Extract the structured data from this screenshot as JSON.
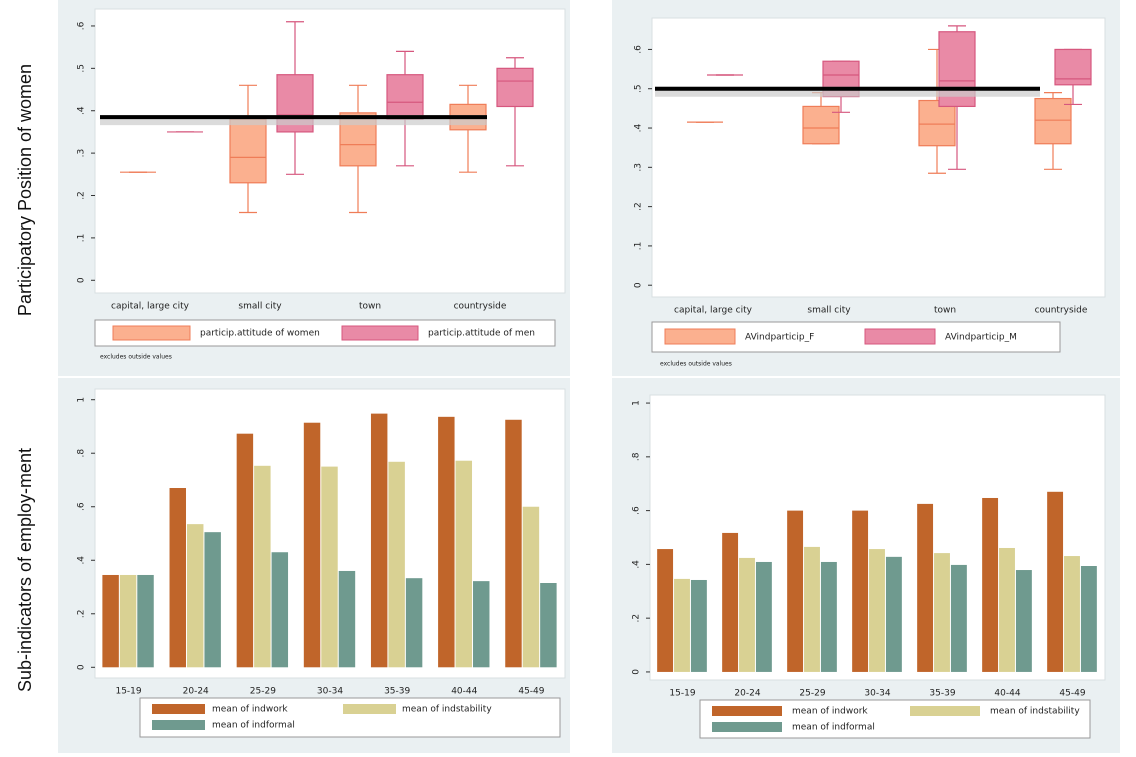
{
  "side_labels": [
    "Sub-indicators of employ-ment",
    "Participatory Position of women"
  ],
  "chart_data": [
    {
      "type": "box",
      "categories": [
        "capital, large city",
        "small city",
        "town",
        "countryside"
      ],
      "ylim": [
        -0.03,
        0.64
      ],
      "yticks": [
        0,
        {
          "value": 0.1,
          "label": ".1"
        },
        {
          "value": 0.2,
          "label": ".2"
        },
        {
          "value": 0.3,
          "label": ".3"
        },
        {
          "value": 0.4,
          "label": ".4"
        },
        {
          "value": 0.5,
          "label": ".5"
        },
        {
          "value": 0.6,
          "label": ".6"
        }
      ],
      "reference_line": 0.385,
      "note": "excludes outside values",
      "series": [
        {
          "name": "particip.attitude of women",
          "color": "#fbb08f",
          "edge": "#ef7d58",
          "lower": [
            0.255,
            0.16,
            0.16,
            0.255
          ],
          "q1": [
            0.255,
            0.23,
            0.27,
            0.355
          ],
          "median": [
            0.255,
            0.29,
            0.32,
            0.385
          ],
          "q3": [
            0.255,
            0.38,
            0.395,
            0.415
          ],
          "upper": [
            0.255,
            0.46,
            0.46,
            0.46
          ]
        },
        {
          "name": "particip.attitude of men",
          "color": "#e98aa6",
          "edge": "#d6577e",
          "lower": [
            0.35,
            0.25,
            0.27,
            0.27
          ],
          "q1": [
            0.35,
            0.35,
            0.38,
            0.41
          ],
          "median": [
            0.35,
            0.39,
            0.42,
            0.47
          ],
          "q3": [
            0.35,
            0.485,
            0.485,
            0.5
          ],
          "upper": [
            0.35,
            0.61,
            0.54,
            0.525
          ]
        }
      ]
    },
    {
      "type": "box",
      "categories": [
        "capital, large city",
        "small city",
        "town",
        "countryside"
      ],
      "ylim": [
        -0.03,
        0.68
      ],
      "yticks": [
        0,
        {
          "value": 0.1,
          "label": ".1"
        },
        {
          "value": 0.2,
          "label": ".2"
        },
        {
          "value": 0.3,
          "label": ".3"
        },
        {
          "value": 0.4,
          "label": ".4"
        },
        {
          "value": 0.5,
          "label": ".5"
        },
        {
          "value": 0.6,
          "label": ".6"
        }
      ],
      "reference_line": 0.5,
      "note": "excludes outside values",
      "series": [
        {
          "name": "AVindparticip_F",
          "color": "#fbb08f",
          "edge": "#ef7d58",
          "lower": [
            0.415,
            0.36,
            0.285,
            0.295
          ],
          "q1": [
            0.415,
            0.36,
            0.355,
            0.36
          ],
          "median": [
            0.415,
            0.4,
            0.41,
            0.42
          ],
          "q3": [
            0.415,
            0.455,
            0.47,
            0.475
          ],
          "upper": [
            0.415,
            0.49,
            0.6,
            0.49
          ]
        },
        {
          "name": "AVindparticip_M",
          "color": "#e98aa6",
          "edge": "#d6577e",
          "lower": [
            0.535,
            0.44,
            0.295,
            0.46
          ],
          "q1": [
            0.535,
            0.48,
            0.455,
            0.51
          ],
          "median": [
            0.535,
            0.535,
            0.52,
            0.525
          ],
          "q3": [
            0.535,
            0.57,
            0.645,
            0.6
          ],
          "upper": [
            0.535,
            0.57,
            0.66,
            0.6
          ]
        }
      ]
    },
    {
      "type": "bar",
      "categories": [
        "15-19",
        "20-24",
        "25-29",
        "30-34",
        "35-39",
        "40-44",
        "45-49"
      ],
      "ylim": [
        -0.04,
        1.04
      ],
      "yticks": [
        0,
        {
          "value": 0.2,
          "label": ".2"
        },
        {
          "value": 0.4,
          "label": ".4"
        },
        {
          "value": 0.6,
          "label": ".6"
        },
        {
          "value": 0.8,
          "label": ".8"
        },
        1
      ],
      "series": [
        {
          "name": "mean of indwork",
          "color": "#c0652a",
          "values": [
            0.345,
            0.67,
            0.873,
            0.914,
            0.948,
            0.936,
            0.925
          ]
        },
        {
          "name": "mean of indstability",
          "color": "#d9d193",
          "values": [
            0.345,
            0.535,
            0.753,
            0.75,
            0.768,
            0.772,
            0.6
          ]
        },
        {
          "name": "mean of indformal",
          "color": "#6f9a8f",
          "values": [
            0.345,
            0.505,
            0.43,
            0.36,
            0.333,
            0.322,
            0.315
          ]
        }
      ]
    },
    {
      "type": "bar",
      "categories": [
        "15-19",
        "20-24",
        "25-29",
        "30-34",
        "35-39",
        "40-44",
        "45-49"
      ],
      "ylim": [
        -0.03,
        1.03
      ],
      "yticks": [
        0,
        {
          "value": 0.2,
          "label": ".2"
        },
        {
          "value": 0.4,
          "label": ".4"
        },
        {
          "value": 0.6,
          "label": ".6"
        },
        {
          "value": 0.8,
          "label": ".8"
        },
        1
      ],
      "series": [
        {
          "name": "mean of indwork",
          "color": "#c0652a",
          "values": [
            0.457,
            0.517,
            0.6,
            0.6,
            0.625,
            0.647,
            0.67
          ]
        },
        {
          "name": "mean of indstability",
          "color": "#d9d193",
          "values": [
            0.346,
            0.424,
            0.465,
            0.457,
            0.442,
            0.461,
            0.431
          ]
        },
        {
          "name": "mean of indformal",
          "color": "#6f9a8f",
          "values": [
            0.342,
            0.409,
            0.409,
            0.428,
            0.398,
            0.379,
            0.394
          ]
        }
      ]
    }
  ]
}
